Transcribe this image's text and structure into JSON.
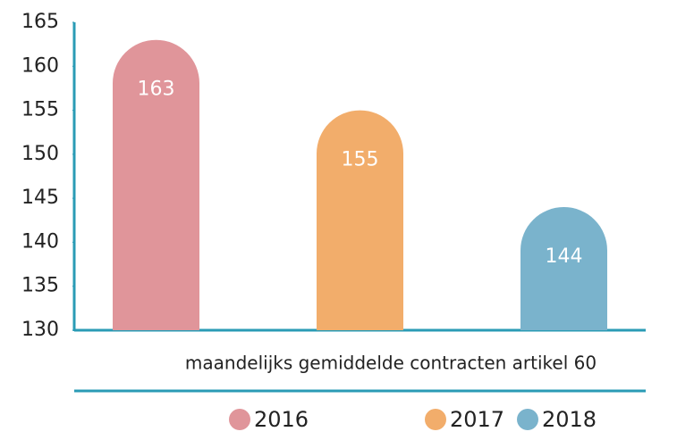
{
  "chart_data": {
    "type": "bar",
    "categories": [
      "maandelijks gemiddelde contracten artikel 60"
    ],
    "series": [
      {
        "name": "2016",
        "color": "#e0959a",
        "values": [
          163
        ]
      },
      {
        "name": "2017",
        "color": "#f2ad6b",
        "values": [
          155
        ]
      },
      {
        "name": "2018",
        "color": "#7ab3cc",
        "values": [
          144
        ]
      }
    ],
    "ylim": [
      130,
      165
    ],
    "yticks": [
      130,
      135,
      140,
      145,
      150,
      155,
      160,
      165
    ],
    "axis_color": "#2a9bb5",
    "legend": "bottom"
  }
}
